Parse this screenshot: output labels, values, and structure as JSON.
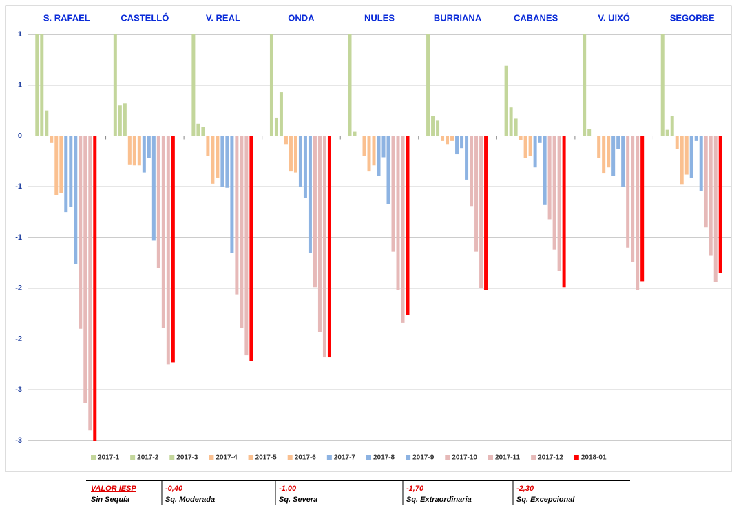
{
  "chart_data": {
    "type": "bar",
    "categories": [
      "S. RAFAEL",
      "CASTELLÓ",
      "V. REAL",
      "ONDA",
      "NULES",
      "BURRIANA",
      "CABANES",
      "V. UIXÓ",
      "SEGORBE"
    ],
    "ylim": [
      -3,
      1
    ],
    "yticks": [
      {
        "value": 1,
        "label": "1"
      },
      {
        "value": 0.5,
        "label": "1"
      },
      0,
      {
        "value": -0.5,
        "label": "-1"
      },
      {
        "value": -1,
        "label": "-1"
      },
      {
        "value": -1.5,
        "label": "-2"
      },
      {
        "value": -2,
        "label": "-2"
      },
      {
        "value": -2.5,
        "label": "-3"
      },
      {
        "value": -3,
        "label": "-3"
      }
    ],
    "grid": true,
    "legend": "bottom",
    "series": [
      {
        "name": "2017-1",
        "color": "#c3d69b",
        "values": [
          1,
          1,
          1,
          1,
          1,
          1,
          0.69,
          1,
          1
        ]
      },
      {
        "name": "2017-2",
        "color": "#c3d69b",
        "values": [
          1,
          0.3,
          0.12,
          0.18,
          0.04,
          0.2,
          0.28,
          0.07,
          0.06
        ]
      },
      {
        "name": "2017-3",
        "color": "#c3d69b",
        "values": [
          0.25,
          0.32,
          0.09,
          0.43,
          0,
          0.15,
          0.17,
          0,
          0.2
        ]
      },
      {
        "name": "2017-4",
        "color": "#fac090",
        "values": [
          -0.07,
          -0.28,
          -0.2,
          -0.08,
          -0.2,
          -0.05,
          -0.04,
          -0.22,
          -0.13
        ]
      },
      {
        "name": "2017-5",
        "color": "#fac090",
        "values": [
          -0.58,
          -0.29,
          -0.47,
          -0.35,
          -0.35,
          -0.08,
          -0.22,
          -0.37,
          -0.48
        ]
      },
      {
        "name": "2017-6",
        "color": "#fac090",
        "values": [
          -0.56,
          -0.29,
          -0.41,
          -0.36,
          -0.29,
          -0.05,
          -0.2,
          -0.31,
          -0.38
        ]
      },
      {
        "name": "2017-7",
        "color": "#8db3e2",
        "values": [
          -0.75,
          -0.36,
          -0.5,
          -0.5,
          -0.39,
          -0.18,
          -0.31,
          -0.39,
          -0.41
        ]
      },
      {
        "name": "2017-8",
        "color": "#8db3e2",
        "values": [
          -0.7,
          -0.22,
          -0.51,
          -0.61,
          -0.21,
          -0.12,
          -0.07,
          -0.13,
          -0.05
        ]
      },
      {
        "name": "2017-9",
        "color": "#8db3e2",
        "values": [
          -1.26,
          -1.03,
          -1.15,
          -1.15,
          -0.67,
          -0.43,
          -0.68,
          -0.5,
          -0.54
        ]
      },
      {
        "name": "2017-10",
        "color": "#e6b9b8",
        "values": [
          -1.9,
          -1.3,
          -1.56,
          -1.49,
          -1.14,
          -0.69,
          -0.82,
          -1.1,
          -0.9
        ]
      },
      {
        "name": "2017-11",
        "color": "#e6b9b8",
        "values": [
          -2.63,
          -1.89,
          -1.89,
          -1.93,
          -1.52,
          -1.14,
          -1.12,
          -1.24,
          -1.18
        ]
      },
      {
        "name": "2017-12",
        "color": "#e6b9b8",
        "values": [
          -2.9,
          -2.25,
          -2.16,
          -2.18,
          -1.84,
          -1.5,
          -1.33,
          -1.52,
          -1.44
        ]
      },
      {
        "name": "2018-01",
        "color": "#ff0000",
        "values": [
          -3,
          -2.23,
          -2.22,
          -2.18,
          -1.76,
          -1.52,
          -1.49,
          -1.43,
          -1.35
        ]
      }
    ]
  },
  "iesp_table": {
    "header": [
      "VALOR IESP",
      "-0,40",
      "-1,00",
      "-1,70",
      "-2,30"
    ],
    "labels": [
      "Sin Sequía",
      "Sq. Moderada",
      "Sq. Severa",
      "Sq. Extraordinaria",
      "Sq. Excepcional"
    ]
  }
}
